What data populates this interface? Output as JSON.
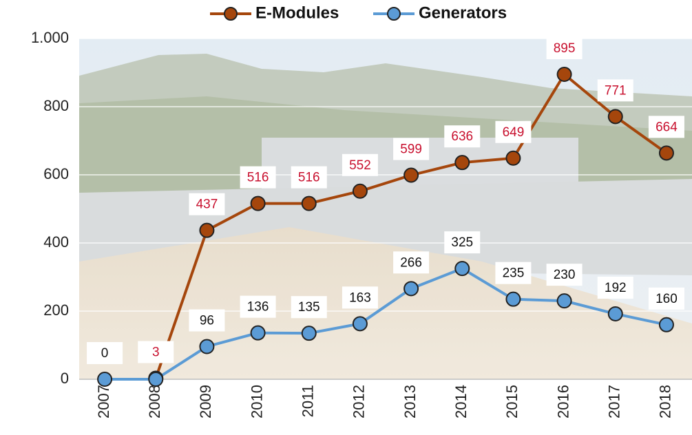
{
  "chart_data": {
    "type": "line",
    "categories": [
      "2007",
      "2008",
      "2009",
      "2010",
      "2011",
      "2012",
      "2013",
      "2014",
      "2015",
      "2016",
      "2017",
      "2018"
    ],
    "series": [
      {
        "name": "E-Modules",
        "color": "#a5460c",
        "label_color": "#c8102e",
        "values": [
          null,
          3,
          437,
          516,
          516,
          552,
          599,
          636,
          649,
          895,
          771,
          664
        ]
      },
      {
        "name": "Generators",
        "color": "#5b9bd5",
        "label_color": "#111111",
        "values": [
          0,
          0,
          96,
          136,
          135,
          163,
          266,
          325,
          235,
          230,
          192,
          160
        ],
        "value_labels": [
          "0",
          null,
          "96",
          "136",
          "135",
          "163",
          "266",
          "325",
          "235",
          "230",
          "192",
          "160"
        ]
      }
    ],
    "ylim": [
      0,
      1000
    ],
    "yticks": [
      0,
      200,
      400,
      600,
      800,
      {
        "value": 1000,
        "label": "1.000"
      }
    ],
    "grid": true
  }
}
